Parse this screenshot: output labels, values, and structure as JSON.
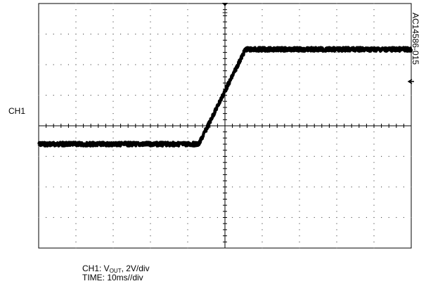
{
  "chart_data": {
    "type": "line",
    "channel_label": "CH1",
    "figure_id": "AC14586-015",
    "grid": true,
    "x_divisions": 10,
    "y_divisions": 8,
    "series": [
      {
        "name": "CH1",
        "x_div": [
          0,
          4.3,
          5.55,
          10
        ],
        "y_div": [
          -0.6,
          -0.6,
          2.5,
          2.5
        ]
      }
    ],
    "caption": {
      "line1_prefix": "CH1: V",
      "line1_sub": "OUT",
      "line1_suffix": ", 2V/div",
      "line2": "TIME: 10ms//div"
    }
  }
}
